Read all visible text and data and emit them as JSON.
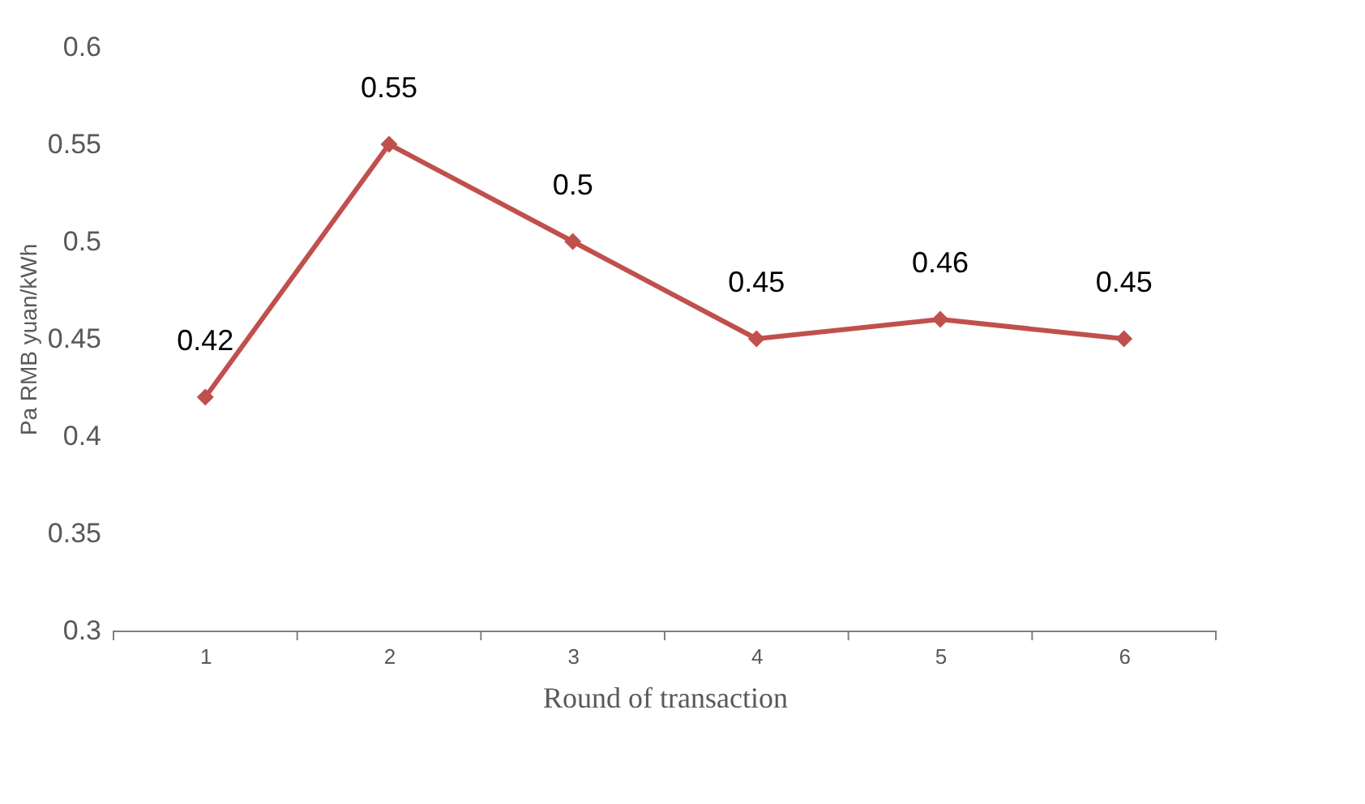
{
  "chart_data": {
    "type": "line",
    "xlabel": "Round of transaction",
    "ylabel": "Pa RMB yuan/kWh",
    "categories": [
      "1",
      "2",
      "3",
      "4",
      "5",
      "6"
    ],
    "series": [
      {
        "color": "#c0504d",
        "values": [
          0.42,
          0.55,
          0.5,
          0.45,
          0.46,
          0.45
        ]
      }
    ],
    "ylim": [
      0.3,
      0.6
    ],
    "yticks": [
      0.3,
      0.35,
      0.4,
      0.45,
      0.5,
      0.55,
      0.6
    ],
    "data_labels": true,
    "marker": "diamond",
    "line_style": "solid",
    "grid": false
  }
}
